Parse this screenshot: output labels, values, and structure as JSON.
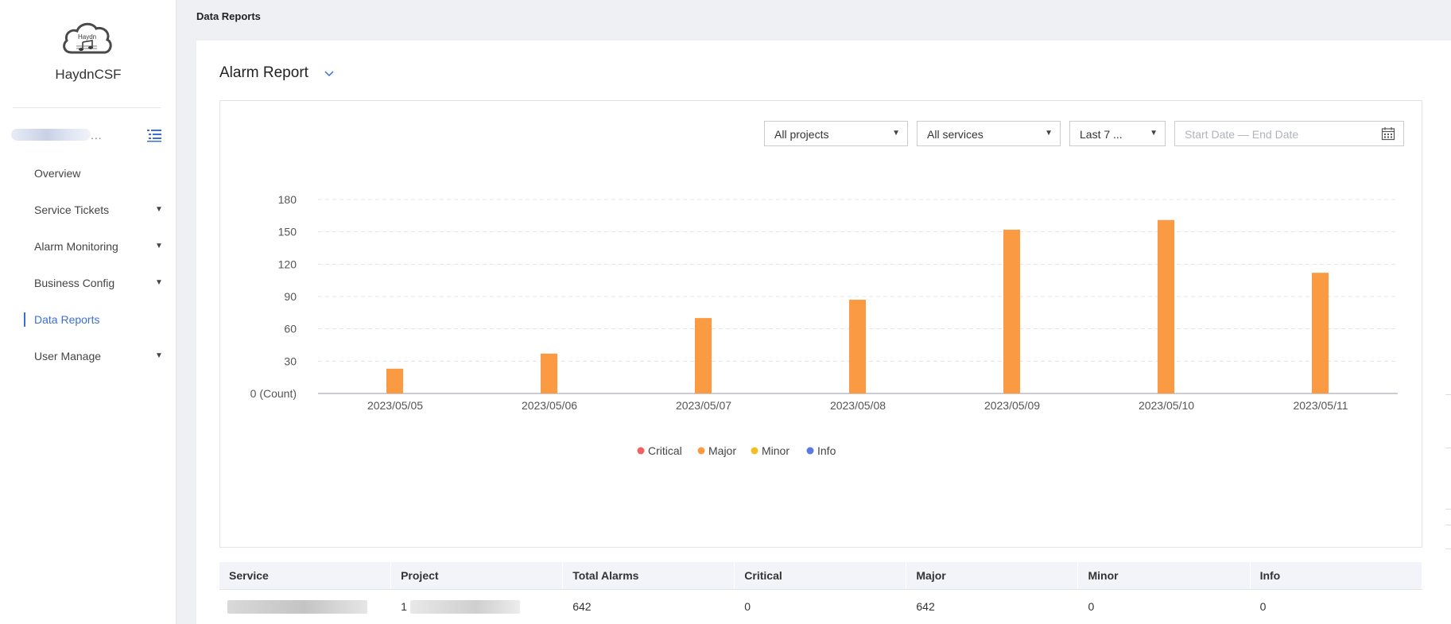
{
  "app": {
    "brand": "HaydnCSF",
    "logo_text": "Haydn"
  },
  "sidebar": {
    "user_ellipsis": "...",
    "items": [
      {
        "label": "Overview",
        "has_caret": false,
        "active": false
      },
      {
        "label": "Service Tickets",
        "has_caret": true,
        "active": false
      },
      {
        "label": "Alarm Monitoring",
        "has_caret": true,
        "active": false
      },
      {
        "label": "Business Config",
        "has_caret": true,
        "active": false
      },
      {
        "label": "Data Reports",
        "has_caret": false,
        "active": true
      },
      {
        "label": "User Manage",
        "has_caret": true,
        "active": false
      }
    ]
  },
  "breadcrumb": "Data Reports",
  "report": {
    "title": "Alarm Report",
    "filters": {
      "project": "All projects",
      "service": "All services",
      "range": "Last 7 ...",
      "date_placeholder": "Start Date — End Date"
    }
  },
  "colors": {
    "accent": "#3b6fd8",
    "critical": "#f0625e",
    "major": "#fa9a42",
    "minor": "#f5bd1f",
    "info": "#5b7ae0"
  },
  "chart_data": {
    "type": "bar",
    "categories": [
      "2023/05/05",
      "2023/05/06",
      "2023/05/07",
      "2023/05/08",
      "2023/05/09",
      "2023/05/10",
      "2023/05/11"
    ],
    "series": [
      {
        "name": "Critical",
        "color": "#f0625e",
        "values": [
          0,
          0,
          0,
          0,
          0,
          0,
          0
        ]
      },
      {
        "name": "Major",
        "color": "#fa9a42",
        "values": [
          23,
          37,
          70,
          87,
          152,
          161,
          112
        ]
      },
      {
        "name": "Minor",
        "color": "#f5bd1f",
        "values": [
          0,
          0,
          0,
          0,
          0,
          0,
          0
        ]
      },
      {
        "name": "Info",
        "color": "#5b7ae0",
        "values": [
          0,
          0,
          0,
          0,
          0,
          0,
          0
        ]
      }
    ],
    "yticks": [
      "0 (Count)",
      "30",
      "60",
      "90",
      "120",
      "150",
      "180"
    ],
    "ylim": [
      0,
      180
    ],
    "grid": true,
    "legend": "bottom-center"
  },
  "table": {
    "headers": [
      "Service",
      "Project",
      "Total Alarms",
      "Critical",
      "Major",
      "Minor",
      "Info"
    ],
    "rows": [
      {
        "project_prefix": "1",
        "total": "642",
        "critical": "0",
        "major": "642",
        "minor": "0",
        "info": "0"
      }
    ]
  }
}
